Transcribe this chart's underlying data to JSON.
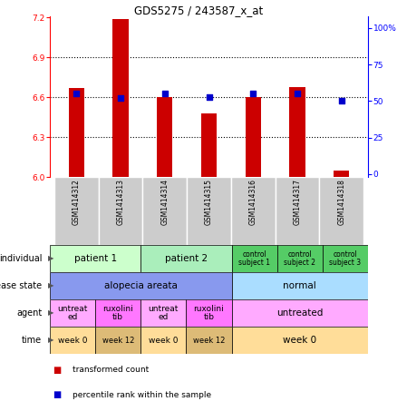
{
  "title": "GDS5275 / 243587_x_at",
  "samples": [
    "GSM1414312",
    "GSM1414313",
    "GSM1414314",
    "GSM1414315",
    "GSM1414316",
    "GSM1414317",
    "GSM1414318"
  ],
  "transformed_counts": [
    6.67,
    7.19,
    6.6,
    6.48,
    6.6,
    6.68,
    6.05
  ],
  "percentile_ranks": [
    55,
    52,
    55,
    53,
    55,
    55,
    50
  ],
  "y_min": 6.0,
  "y_max": 7.2,
  "y_ticks": [
    6.0,
    6.3,
    6.6,
    6.9,
    7.2
  ],
  "y2_ticks": [
    0,
    25,
    50,
    75,
    100
  ],
  "y2_tick_labels": [
    "0",
    "25",
    "50",
    "75",
    "100%"
  ],
  "bar_color": "#cc0000",
  "dot_color": "#0000cc",
  "individual_row": {
    "cells": [
      {
        "text": "patient 1",
        "span": 2,
        "color": "#ccffcc",
        "fontsize": 7.5
      },
      {
        "text": "patient 2",
        "span": 2,
        "color": "#aaeebb",
        "fontsize": 7.5
      },
      {
        "text": "control\nsubject 1",
        "span": 1,
        "color": "#55cc66",
        "fontsize": 5.5
      },
      {
        "text": "control\nsubject 2",
        "span": 1,
        "color": "#55cc66",
        "fontsize": 5.5
      },
      {
        "text": "control\nsubject 3",
        "span": 1,
        "color": "#55cc66",
        "fontsize": 5.5
      }
    ]
  },
  "disease_state_row": {
    "cells": [
      {
        "text": "alopecia areata",
        "span": 4,
        "color": "#8899ee",
        "fontsize": 7.5
      },
      {
        "text": "normal",
        "span": 3,
        "color": "#aaddff",
        "fontsize": 7.5
      }
    ]
  },
  "agent_row": {
    "cells": [
      {
        "text": "untreat\ned",
        "span": 1,
        "color": "#ffaaff",
        "fontsize": 6.5
      },
      {
        "text": "ruxolini\ntib",
        "span": 1,
        "color": "#ff77ff",
        "fontsize": 6.5
      },
      {
        "text": "untreat\ned",
        "span": 1,
        "color": "#ffaaff",
        "fontsize": 6.5
      },
      {
        "text": "ruxolini\ntib",
        "span": 1,
        "color": "#ff77ff",
        "fontsize": 6.5
      },
      {
        "text": "untreated",
        "span": 3,
        "color": "#ffaaff",
        "fontsize": 7.5
      }
    ]
  },
  "time_row": {
    "cells": [
      {
        "text": "week 0",
        "span": 1,
        "color": "#ffdd99",
        "fontsize": 6.5
      },
      {
        "text": "week 12",
        "span": 1,
        "color": "#ddbb77",
        "fontsize": 6.0
      },
      {
        "text": "week 0",
        "span": 1,
        "color": "#ffdd99",
        "fontsize": 6.5
      },
      {
        "text": "week 12",
        "span": 1,
        "color": "#ddbb77",
        "fontsize": 6.0
      },
      {
        "text": "week 0",
        "span": 3,
        "color": "#ffdd99",
        "fontsize": 7.5
      }
    ]
  },
  "row_labels": [
    "individual",
    "disease state",
    "agent",
    "time"
  ],
  "legend_items": [
    {
      "color": "#cc0000",
      "text": "transformed count"
    },
    {
      "color": "#0000cc",
      "text": "percentile rank within the sample"
    }
  ]
}
